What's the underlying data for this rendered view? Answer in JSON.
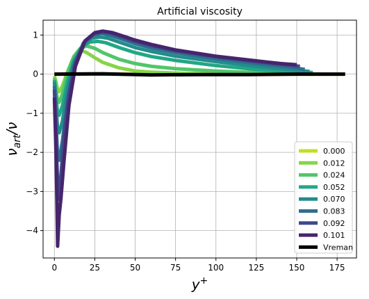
{
  "chart_data": {
    "type": "line",
    "title": "Artificial viscosity",
    "xlabel": "y⁺",
    "ylabel": "ν_art/ν",
    "xlim": [
      -7,
      187
    ],
    "ylim": [
      -4.7,
      1.38
    ],
    "xticks": [
      0,
      25,
      50,
      75,
      100,
      125,
      150,
      175
    ],
    "yticks": [
      -4,
      -3,
      -2,
      -1,
      0,
      1
    ],
    "grid": true,
    "legend_position": "lower-right",
    "series": [
      {
        "name": "0.000",
        "color": "#c2df23",
        "points": [
          [
            0,
            0
          ],
          [
            180,
            0
          ]
        ]
      },
      {
        "name": "0.012",
        "color": "#86d549",
        "points": [
          [
            0,
            -0.05
          ],
          [
            1,
            -0.2
          ],
          [
            2,
            -0.4
          ],
          [
            3,
            -0.45
          ],
          [
            5,
            -0.3
          ],
          [
            8,
            0.05
          ],
          [
            11,
            0.35
          ],
          [
            14,
            0.55
          ],
          [
            17,
            0.6
          ],
          [
            20,
            0.55
          ],
          [
            25,
            0.42
          ],
          [
            30,
            0.3
          ],
          [
            40,
            0.16
          ],
          [
            50,
            0.08
          ],
          [
            60,
            0.05
          ],
          [
            80,
            0.02
          ],
          [
            100,
            0.01
          ],
          [
            130,
            0.005
          ],
          [
            160,
            0.0
          ]
        ]
      },
      {
        "name": "0.024",
        "color": "#52c569",
        "points": [
          [
            0,
            -0.1
          ],
          [
            1,
            -0.4
          ],
          [
            2,
            -0.7
          ],
          [
            3,
            -0.72
          ],
          [
            5,
            -0.5
          ],
          [
            8,
            0
          ],
          [
            12,
            0.45
          ],
          [
            16,
            0.66
          ],
          [
            20,
            0.72
          ],
          [
            25,
            0.66
          ],
          [
            30,
            0.55
          ],
          [
            40,
            0.38
          ],
          [
            50,
            0.27
          ],
          [
            60,
            0.2
          ],
          [
            75,
            0.14
          ],
          [
            100,
            0.08
          ],
          [
            125,
            0.04
          ],
          [
            155,
            0.01
          ],
          [
            165,
            0.0
          ]
        ]
      },
      {
        "name": "0.052",
        "color": "#22a785",
        "points": [
          [
            0,
            -0.15
          ],
          [
            1,
            -0.6
          ],
          [
            2,
            -1.0
          ],
          [
            3,
            -1.05
          ],
          [
            5,
            -0.8
          ],
          [
            8,
            -0.2
          ],
          [
            12,
            0.35
          ],
          [
            17,
            0.7
          ],
          [
            22,
            0.82
          ],
          [
            27,
            0.84
          ],
          [
            32,
            0.8
          ],
          [
            40,
            0.68
          ],
          [
            50,
            0.55
          ],
          [
            60,
            0.45
          ],
          [
            75,
            0.35
          ],
          [
            100,
            0.22
          ],
          [
            125,
            0.12
          ],
          [
            150,
            0.06
          ],
          [
            160,
            0.04
          ]
        ]
      },
      {
        "name": "0.070",
        "color": "#228c8d",
        "points": [
          [
            0,
            -0.2
          ],
          [
            1,
            -0.8
          ],
          [
            2,
            -1.4
          ],
          [
            3,
            -1.5
          ],
          [
            5,
            -1.2
          ],
          [
            8,
            -0.4
          ],
          [
            12,
            0.3
          ],
          [
            18,
            0.75
          ],
          [
            23,
            0.92
          ],
          [
            28,
            0.95
          ],
          [
            33,
            0.92
          ],
          [
            40,
            0.82
          ],
          [
            50,
            0.68
          ],
          [
            60,
            0.58
          ],
          [
            75,
            0.46
          ],
          [
            100,
            0.32
          ],
          [
            125,
            0.2
          ],
          [
            150,
            0.1
          ],
          [
            158,
            0.07
          ]
        ]
      },
      {
        "name": "0.083",
        "color": "#2e6f8e",
        "points": [
          [
            0,
            -0.3
          ],
          [
            1,
            -1.2
          ],
          [
            2,
            -2.1
          ],
          [
            3,
            -2.2
          ],
          [
            5,
            -1.7
          ],
          [
            8,
            -0.7
          ],
          [
            12,
            0.2
          ],
          [
            18,
            0.8
          ],
          [
            24,
            1.0
          ],
          [
            29,
            1.04
          ],
          [
            34,
            1.0
          ],
          [
            40,
            0.92
          ],
          [
            50,
            0.78
          ],
          [
            60,
            0.67
          ],
          [
            75,
            0.55
          ],
          [
            100,
            0.4
          ],
          [
            125,
            0.27
          ],
          [
            145,
            0.18
          ],
          [
            155,
            0.12
          ]
        ]
      },
      {
        "name": "0.092",
        "color": "#3f4889",
        "points": [
          [
            0,
            -0.4
          ],
          [
            1,
            -1.6
          ],
          [
            2,
            -2.8
          ],
          [
            3,
            -3.2
          ],
          [
            4,
            -2.6
          ],
          [
            6,
            -1.6
          ],
          [
            9,
            -0.5
          ],
          [
            13,
            0.3
          ],
          [
            19,
            0.85
          ],
          [
            25,
            1.05
          ],
          [
            30,
            1.08
          ],
          [
            35,
            1.05
          ],
          [
            42,
            0.95
          ],
          [
            50,
            0.84
          ],
          [
            60,
            0.73
          ],
          [
            75,
            0.6
          ],
          [
            100,
            0.44
          ],
          [
            125,
            0.32
          ],
          [
            145,
            0.23
          ],
          [
            152,
            0.2
          ]
        ]
      },
      {
        "name": "0.101",
        "color": "#46256d",
        "points": [
          [
            0,
            -0.6
          ],
          [
            1,
            -2.0
          ],
          [
            1.5,
            -3.2
          ],
          [
            2,
            -4.4
          ],
          [
            3,
            -3.6
          ],
          [
            4,
            -3.2
          ],
          [
            6,
            -2.2
          ],
          [
            9,
            -0.8
          ],
          [
            13,
            0.2
          ],
          [
            19,
            0.85
          ],
          [
            25,
            1.06
          ],
          [
            30,
            1.1
          ],
          [
            36,
            1.06
          ],
          [
            42,
            0.98
          ],
          [
            50,
            0.87
          ],
          [
            60,
            0.76
          ],
          [
            75,
            0.62
          ],
          [
            100,
            0.46
          ],
          [
            125,
            0.34
          ],
          [
            140,
            0.27
          ],
          [
            150,
            0.24
          ]
        ]
      },
      {
        "name": "Vreman",
        "color": "#000000",
        "points": [
          [
            0,
            0.0
          ],
          [
            30,
            0.01
          ],
          [
            60,
            -0.02
          ],
          [
            90,
            -0.01
          ],
          [
            120,
            -0.01
          ],
          [
            150,
            0.0
          ],
          [
            180,
            0.0
          ]
        ]
      }
    ]
  }
}
